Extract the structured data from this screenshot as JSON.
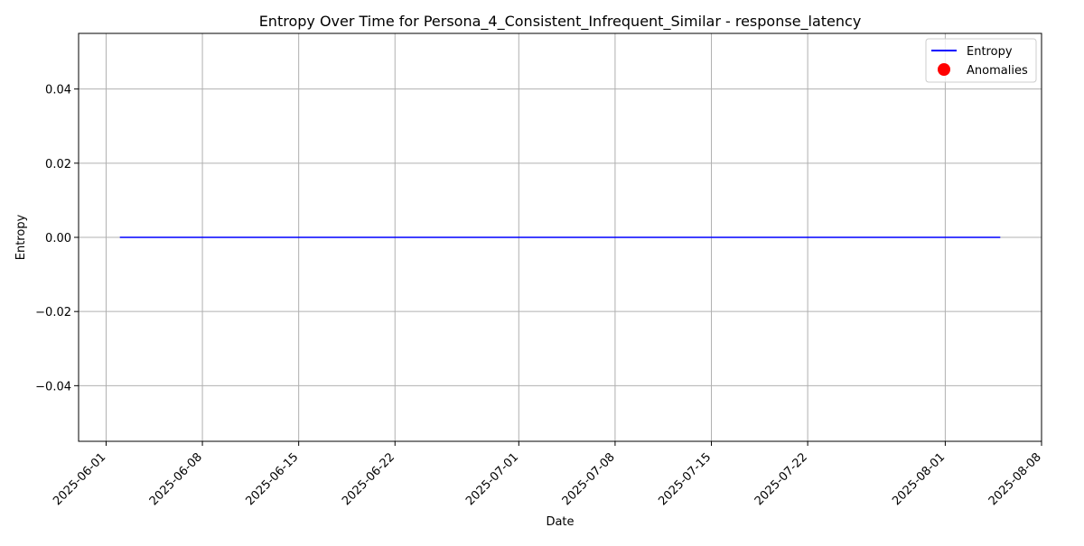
{
  "chart_data": {
    "type": "line",
    "title": "Entropy Over Time for Persona_4_Consistent_Infrequent_Similar - response_latency",
    "xlabel": "Date",
    "ylabel": "Entropy",
    "x_ticks": [
      "2025-06-01",
      "2025-06-08",
      "2025-06-15",
      "2025-06-22",
      "2025-07-01",
      "2025-07-08",
      "2025-07-15",
      "2025-07-22",
      "2025-08-01",
      "2025-08-08"
    ],
    "y_ticks": [
      0.04,
      0.02,
      0.0,
      -0.02,
      -0.04
    ],
    "y_tick_labels": [
      "0.04",
      "0.02",
      "0.00",
      "−0.02",
      "−0.04"
    ],
    "xlim": [
      "2025-05-30",
      "2025-08-08"
    ],
    "ylim": [
      -0.055,
      0.055
    ],
    "grid": true,
    "legend_position": "top-right",
    "series": [
      {
        "name": "Entropy",
        "kind": "line",
        "color": "#0000ff",
        "x": [
          "2025-06-02",
          "2025-08-05"
        ],
        "values": [
          0.0,
          0.0
        ]
      },
      {
        "name": "Anomalies",
        "kind": "scatter",
        "color": "#ff0000",
        "x": [],
        "values": []
      }
    ]
  }
}
